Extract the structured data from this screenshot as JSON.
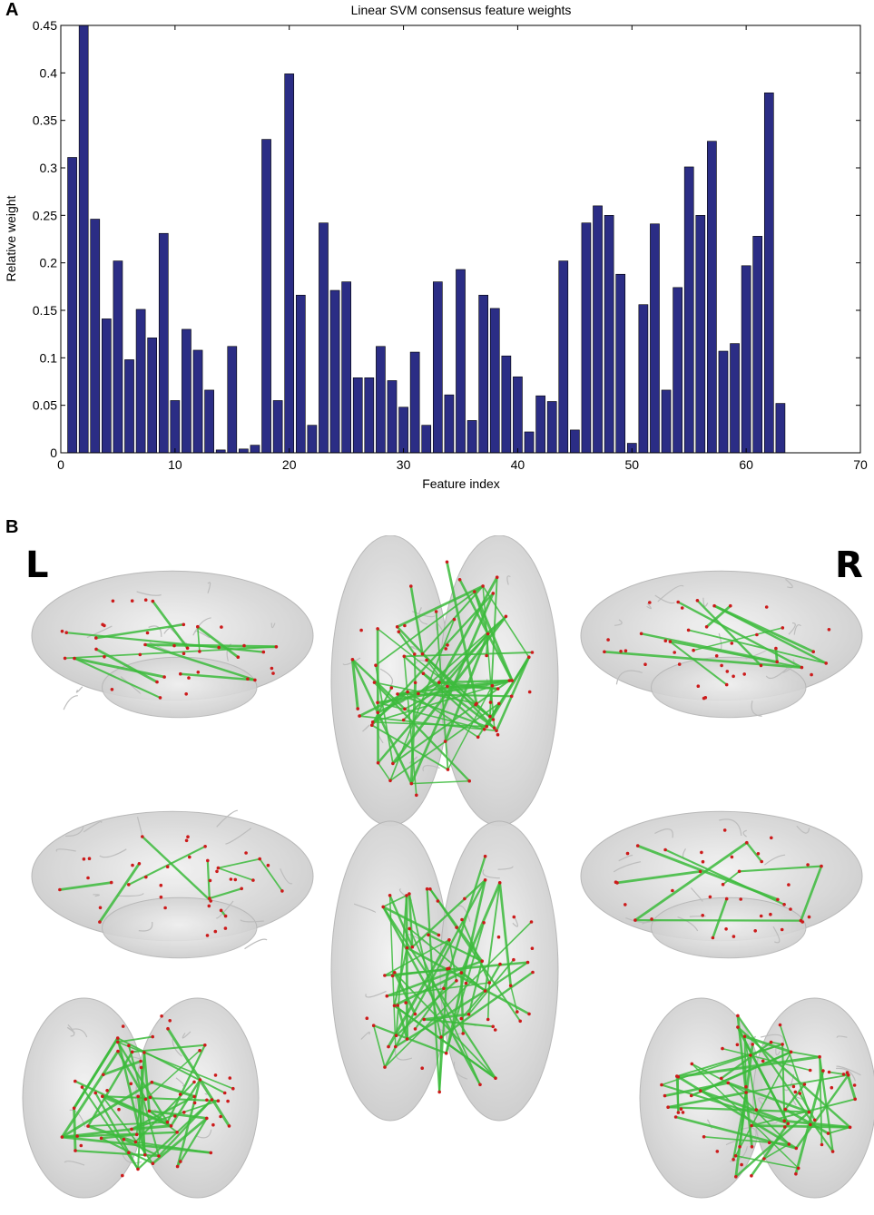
{
  "panel_a_label": "A",
  "panel_b_label": "B",
  "brain": {
    "left_label": "L",
    "right_label": "R"
  },
  "colors": {
    "bar": "#2b2d85",
    "edge": "#3cbb3c",
    "node": "#cc1b1b",
    "brain": "#d9d9d9"
  },
  "chart_data": {
    "type": "bar",
    "title": "Linear SVM consensus feature weights",
    "xlabel": "Feature index",
    "ylabel": "Relative weight",
    "xlim": [
      0,
      70
    ],
    "ylim": [
      0,
      0.45
    ],
    "xticks": [
      0,
      10,
      20,
      30,
      40,
      50,
      60,
      70
    ],
    "yticks": [
      0,
      0.05,
      0.1,
      0.15,
      0.2,
      0.25,
      0.3,
      0.35,
      0.4,
      0.45
    ],
    "xtick_labels": [
      "0",
      "10",
      "20",
      "30",
      "40",
      "50",
      "60",
      "70"
    ],
    "ytick_labels": [
      "0",
      "0.05",
      "0.1",
      "0.15",
      "0.2",
      "0.25",
      "0.3",
      "0.35",
      "0.4",
      "0.45"
    ],
    "x": [
      1,
      2,
      3,
      4,
      5,
      6,
      7,
      8,
      9,
      10,
      11,
      12,
      13,
      14,
      15,
      16,
      17,
      18,
      19,
      20,
      21,
      22,
      23,
      24,
      25,
      26,
      27,
      28,
      29,
      30,
      31,
      32,
      33,
      34,
      35,
      36,
      37,
      38,
      39,
      40,
      41,
      42,
      43,
      44,
      45,
      46,
      47,
      48,
      49,
      50,
      51,
      52,
      53,
      54,
      55,
      56,
      57,
      58,
      59,
      60,
      61,
      62,
      63
    ],
    "values": [
      0.311,
      0.45,
      0.246,
      0.141,
      0.202,
      0.098,
      0.151,
      0.121,
      0.231,
      0.055,
      0.13,
      0.108,
      0.066,
      0.003,
      0.112,
      0.004,
      0.008,
      0.33,
      0.055,
      0.399,
      0.166,
      0.029,
      0.242,
      0.171,
      0.18,
      0.079,
      0.079,
      0.112,
      0.076,
      0.048,
      0.106,
      0.029,
      0.18,
      0.061,
      0.193,
      0.034,
      0.166,
      0.152,
      0.102,
      0.08,
      0.022,
      0.06,
      0.054,
      0.202,
      0.024,
      0.242,
      0.26,
      0.25,
      0.188,
      0.01,
      0.156,
      0.241,
      0.066,
      0.174,
      0.301,
      0.25,
      0.328,
      0.107,
      0.115,
      0.197,
      0.228,
      0.379,
      0.052
    ],
    "grid": false
  }
}
